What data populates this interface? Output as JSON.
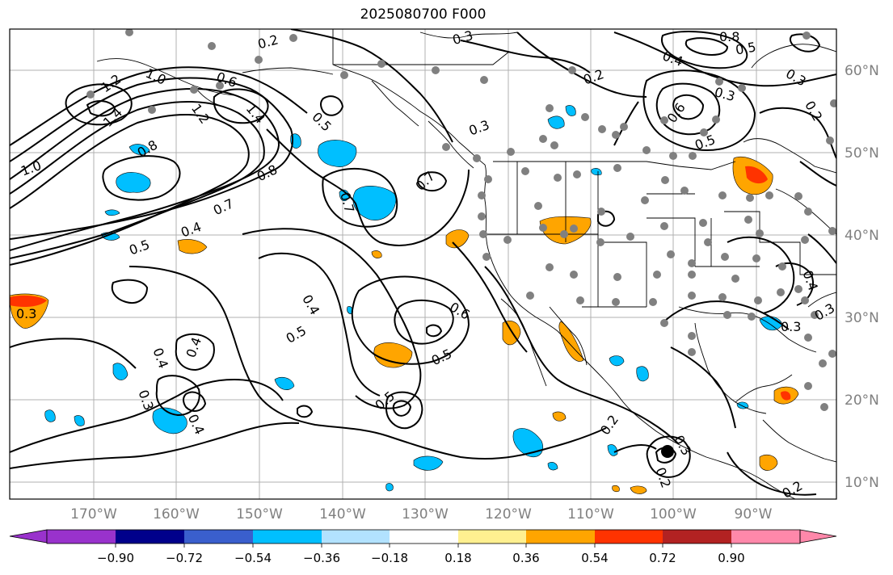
{
  "title": "2025080700 F000",
  "colors": {
    "land_line": "#000000",
    "contour": "#000000",
    "grid": "#b0b0b0",
    "station": "#808080",
    "neg_fill": "#00bfff",
    "pos_fill": "#ffa500",
    "pos_strong": "#ff3300"
  },
  "lon_labels": [
    "170°W",
    "160°W",
    "150°W",
    "140°W",
    "130°W",
    "120°W",
    "110°W",
    "100°W",
    "90°W"
  ],
  "lat_labels": [
    "60°N",
    "50°N",
    "40°N",
    "30°N",
    "20°N",
    "10°N"
  ],
  "contour_labels": [
    "0.2",
    "0.3",
    "0.8",
    "0.5",
    "0.4",
    "1.2",
    "1.0",
    "0.6",
    "1.4",
    "1.2",
    "1.4",
    "0.5",
    "0.3",
    "0.2",
    "0.3",
    "0.6",
    "0.5",
    "0.3",
    "0.2",
    "1.0",
    "0.8",
    "0.8",
    "0.7",
    "0.4",
    "0.5",
    "0.7",
    "0.7",
    "0.4",
    "0.5",
    "0.6",
    "0.5",
    "0.4",
    "0.4",
    "0.3",
    "0.4",
    "0.5",
    "0.2",
    "0.3",
    "0.2",
    "0.3",
    "0.4",
    "0.3",
    "0.3",
    "0.2"
  ],
  "colorbar": {
    "colors": [
      "#9932cc",
      "#00008b",
      "#3a5fcd",
      "#00bfff",
      "#b2e2ff",
      "#ffffff",
      "#fff090",
      "#ffa500",
      "#ff3300",
      "#b22222",
      "#ff88aa"
    ],
    "labels": [
      "−0.90",
      "−0.72",
      "−0.54",
      "−0.36",
      "−0.18",
      "0.18",
      "0.36",
      "0.54",
      "0.72",
      "0.90"
    ]
  }
}
